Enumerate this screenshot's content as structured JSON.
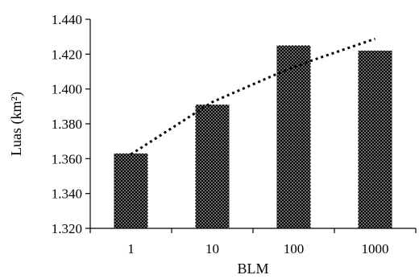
{
  "chart_data": {
    "type": "bar",
    "categories": [
      "1",
      "10",
      "100",
      "1000"
    ],
    "values": [
      1.363,
      1.391,
      1.425,
      1.422
    ],
    "xlabel": "BLM",
    "ylabel": "Luas (km²)",
    "ylim": [
      1.32,
      1.44
    ],
    "yticks": [
      "1.320",
      "1.340",
      "1.360",
      "1.380",
      "1.400",
      "1.420",
      "1.440"
    ],
    "bar_pattern": "dotted",
    "bar_color": "#000000",
    "trendline": {
      "style": "dotted",
      "type": "logarithmic",
      "x": [
        1,
        10,
        100,
        1000
      ],
      "values": [
        1.3625,
        1.3925,
        1.4128,
        1.4288
      ]
    },
    "grid": false,
    "legend": "none"
  }
}
